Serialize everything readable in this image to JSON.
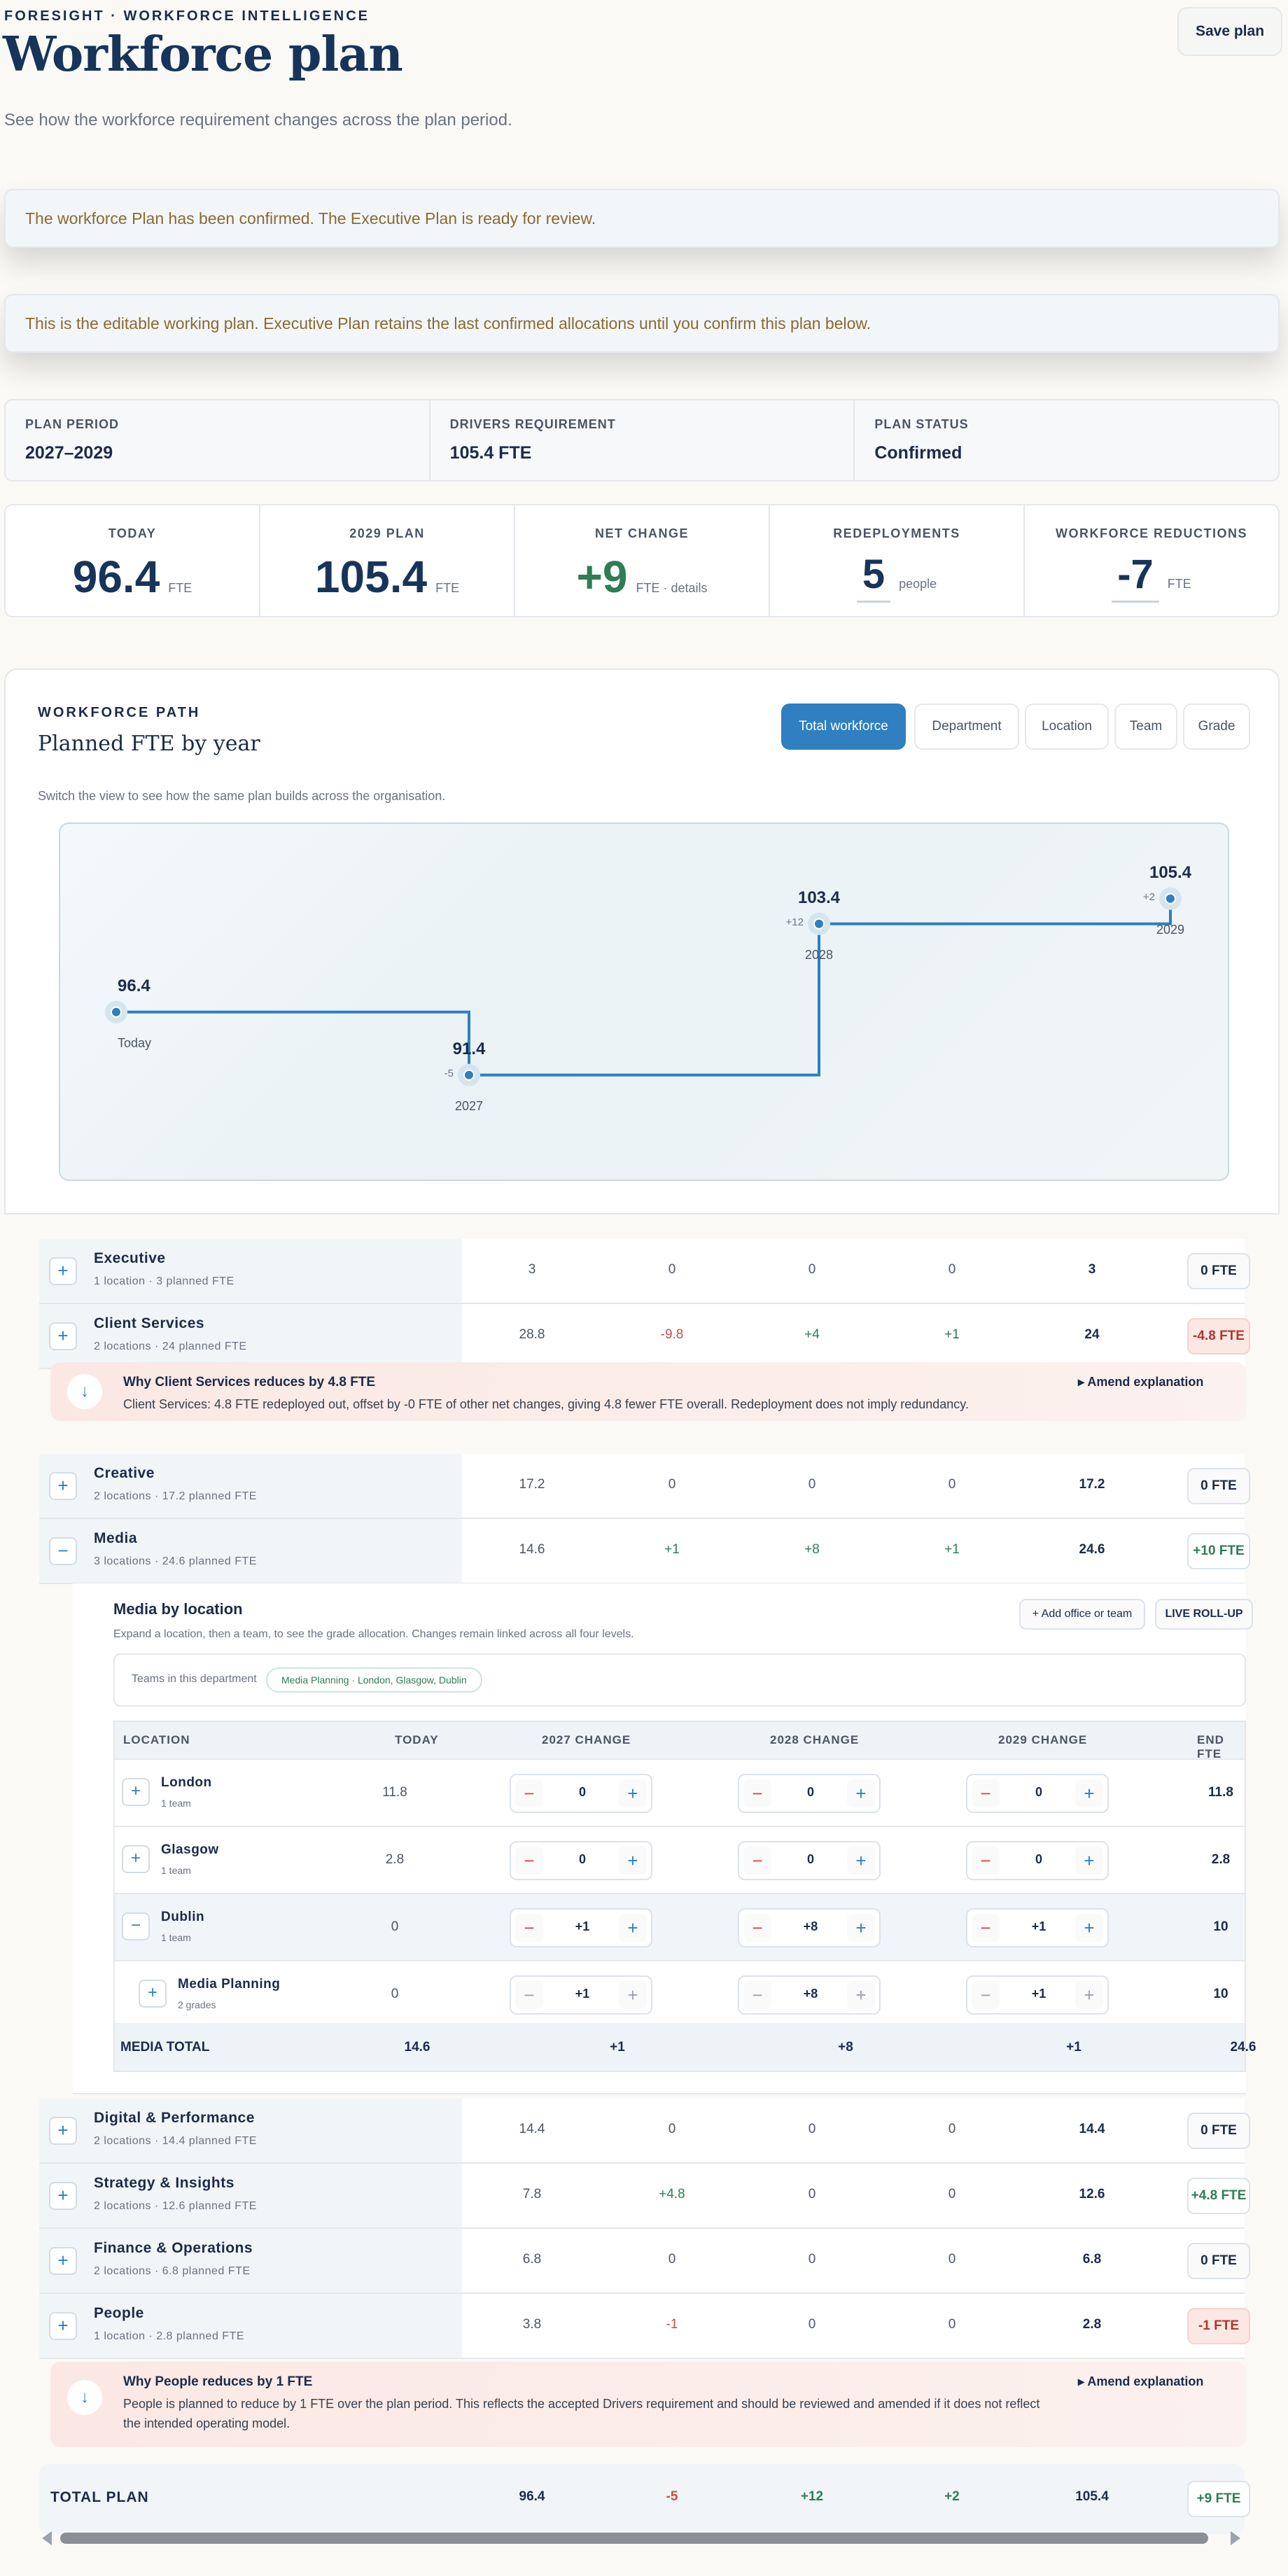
{
  "header": {
    "eyebrow": "FORESIGHT · WORKFORCE INTELLIGENCE",
    "title": "Workforce plan",
    "subtitle": "See how the workforce requirement changes across the plan period.",
    "save_label": "Save plan"
  },
  "banners": {
    "confirmed": "The workforce Plan has been confirmed. The Executive Plan is ready for review.",
    "editable": "This is the editable working plan. Executive Plan retains the last confirmed allocations until you confirm this plan below."
  },
  "meta": {
    "period_label": "PLAN PERIOD",
    "period_value": "2027–2029",
    "drivers_label": "DRIVERS REQUIREMENT",
    "drivers_value": "105.4 FTE",
    "status_label": "PLAN STATUS",
    "status_value": "Confirmed"
  },
  "kpis": {
    "today_label": "TODAY",
    "today_value": "96.4",
    "today_unit": "FTE",
    "plan_label": "2029 PLAN",
    "plan_value": "105.4",
    "plan_unit": "FTE",
    "net_label": "NET CHANGE",
    "net_value": "+9",
    "net_unit": "FTE · details",
    "redeploy_label": "REDEPLOYMENTS",
    "redeploy_value": "5",
    "redeploy_unit": "people",
    "reduce_label": "WORKFORCE REDUCTIONS",
    "reduce_value": "-7",
    "reduce_unit": "FTE"
  },
  "path": {
    "eyebrow": "WORKFORCE PATH",
    "title": "Planned FTE by year",
    "help": "Switch the view to see how the same plan builds across the organisation.",
    "tabs": [
      "Total workforce",
      "Department",
      "Location",
      "Team",
      "Grade"
    ],
    "active_tab": "Total workforce"
  },
  "chart_data": {
    "type": "line",
    "step": true,
    "categories": [
      "Today",
      "2027",
      "2028",
      "2029"
    ],
    "values": [
      96.4,
      91.4,
      103.4,
      105.4
    ],
    "value_labels": [
      "96.4",
      "91.4",
      "103.4",
      "105.4"
    ],
    "deltas": [
      "",
      "-5",
      "+12",
      "+2"
    ],
    "ylim": [
      88,
      108
    ],
    "line_color": "#2f7fc1"
  },
  "departments": [
    {
      "name": "Executive",
      "sub": "1 location · 3 planned FTE",
      "today": "3",
      "c2027": "0",
      "c2028": "0",
      "c2029": "0",
      "end": "3",
      "badge": "0 FTE"
    },
    {
      "name": "Client Services",
      "sub": "2 locations · 24 planned FTE",
      "today": "28.8",
      "c2027": "-9.8",
      "c2028": "+4",
      "c2029": "+1",
      "end": "24",
      "badge": "-4.8 FTE"
    },
    {
      "name": "Creative",
      "sub": "2 locations · 17.2 planned FTE",
      "today": "17.2",
      "c2027": "0",
      "c2028": "0",
      "c2029": "0",
      "end": "17.2",
      "badge": "0 FTE"
    },
    {
      "name": "Media",
      "sub": "3 locations · 24.6 planned FTE",
      "today": "14.6",
      "c2027": "+1",
      "c2028": "+8",
      "c2029": "+1",
      "end": "24.6",
      "badge": "+10 FTE"
    },
    {
      "name": "Digital & Performance",
      "sub": "2 locations · 14.4 planned FTE",
      "today": "14.4",
      "c2027": "0",
      "c2028": "0",
      "c2029": "0",
      "end": "14.4",
      "badge": "0 FTE"
    },
    {
      "name": "Strategy & Insights",
      "sub": "2 locations · 12.6 planned FTE",
      "today": "7.8",
      "c2027": "+4.8",
      "c2028": "0",
      "c2029": "0",
      "end": "12.6",
      "badge": "+4.8 FTE"
    },
    {
      "name": "Finance & Operations",
      "sub": "2 locations · 6.8 planned FTE",
      "today": "6.8",
      "c2027": "0",
      "c2028": "0",
      "c2029": "0",
      "end": "6.8",
      "badge": "0 FTE"
    },
    {
      "name": "People",
      "sub": "1 location · 2.8 planned FTE",
      "today": "3.8",
      "c2027": "-1",
      "c2028": "0",
      "c2029": "0",
      "end": "2.8",
      "badge": "-1 FTE"
    }
  ],
  "why_client": {
    "title": "Why Client Services reduces by 4.8 FTE",
    "text": "Client Services: 4.8 FTE redeployed out, offset by -0 FTE of other net changes, giving 4.8 fewer FTE overall. Redeployment does not imply redundancy.",
    "amend": "▸ Amend explanation"
  },
  "why_people": {
    "title": "Why People reduces by 1 FTE",
    "text": "People is planned to reduce by 1 FTE over the plan period. This reflects the accepted Drivers requirement and should be reviewed and amended if it does not reflect the intended operating model.",
    "amend": "▸ Amend explanation"
  },
  "media": {
    "title": "Media by location",
    "help": "Expand a location, then a team, to see the grade allocation. Changes remain linked across all four levels.",
    "add_btn": "+ Add office or team",
    "rollup_btn": "LIVE ROLL-UP",
    "teams_label": "Teams in this department",
    "teams_chip": "Media Planning · London, Glasgow, Dublin",
    "headers": {
      "location": "LOCATION",
      "today": "TODAY",
      "c2027": "2027 CHANGE",
      "c2028": "2028 CHANGE",
      "c2029": "2029 CHANGE",
      "end": "END FTE"
    },
    "rows": [
      {
        "name": "London",
        "sub": "1 team",
        "today": "11.8",
        "c2027": "0",
        "c2028": "0",
        "c2029": "0",
        "end": "11.8"
      },
      {
        "name": "Glasgow",
        "sub": "1 team",
        "today": "2.8",
        "c2027": "0",
        "c2028": "0",
        "c2029": "0",
        "end": "2.8"
      },
      {
        "name": "Dublin",
        "sub": "1 team",
        "today": "0",
        "c2027": "+1",
        "c2028": "+8",
        "c2029": "+1",
        "end": "10"
      },
      {
        "name": "Media Planning",
        "sub": "2 grades",
        "today": "0",
        "c2027": "+1",
        "c2028": "+8",
        "c2029": "+1",
        "end": "10"
      }
    ],
    "total": {
      "label": "MEDIA TOTAL",
      "today": "14.6",
      "c2027": "+1",
      "c2028": "+8",
      "c2029": "+1",
      "end": "24.6"
    }
  },
  "total_plan": {
    "label": "TOTAL PLAN",
    "today": "96.4",
    "c2027": "-5",
    "c2028": "+12",
    "c2029": "+2",
    "end": "105.4",
    "badge": "+9 FTE"
  },
  "icons": {
    "expand": "+",
    "collapse": "−",
    "info": "↓"
  }
}
